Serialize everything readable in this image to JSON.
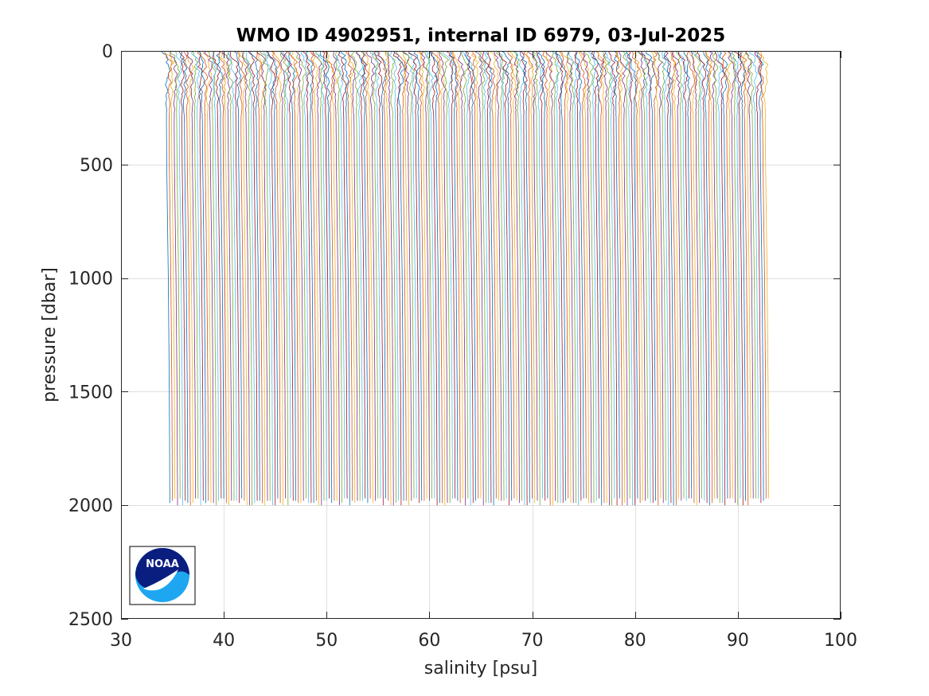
{
  "chart_data": {
    "type": "line",
    "title": "WMO ID 4902951, internal ID 6979, 03-Jul-2025",
    "xlabel": "salinity [psu]",
    "ylabel": "pressure [dbar]",
    "xlim": [
      30,
      100
    ],
    "ylim": [
      0,
      2500
    ],
    "y_reversed": true,
    "grid": true,
    "xticks": [
      30,
      40,
      50,
      60,
      70,
      80,
      90,
      100
    ],
    "xtick_labels": [
      "30",
      "40",
      "50",
      "60",
      "70",
      "80",
      "90",
      "100"
    ],
    "yticks": [
      0,
      500,
      1000,
      1500,
      2000,
      2500
    ],
    "ytick_labels": [
      "0",
      "500",
      "1000",
      "1500",
      "2000",
      "2500"
    ],
    "series_description": "Waterfall of salinity profiles, each successive profile offset by about 0.25 psu",
    "profile_count": 234,
    "first_profile_offset": 34.0,
    "profile_spacing": 0.25,
    "profile_max_pressure": 2000,
    "profile_shape": [
      {
        "pressure": 0,
        "salinity": 34.0
      },
      {
        "pressure": 50,
        "salinity": 34.4
      },
      {
        "pressure": 100,
        "salinity": 34.5
      },
      {
        "pressure": 200,
        "salinity": 34.4
      },
      {
        "pressure": 500,
        "salinity": 34.45
      },
      {
        "pressure": 1000,
        "salinity": 34.6
      },
      {
        "pressure": 1500,
        "salinity": 34.7
      },
      {
        "pressure": 2000,
        "salinity": 34.75
      }
    ],
    "colors": [
      "#0072bd",
      "#d95319",
      "#edb120",
      "#7e2f8e",
      "#77ac30",
      "#4dbeee",
      "#a2142f"
    ]
  },
  "logo": {
    "name": "NOAA",
    "text": "NOAA"
  }
}
